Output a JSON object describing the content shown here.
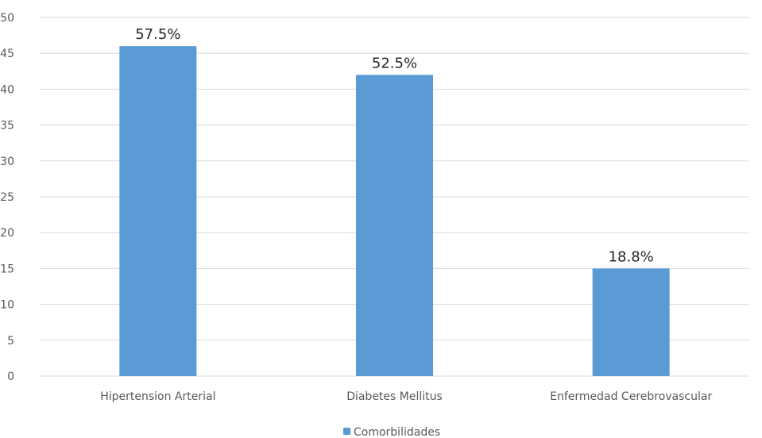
{
  "chart_data": {
    "type": "bar",
    "categories": [
      "Hipertension Arterial",
      "Diabetes Mellitus",
      "Enfermedad Cerebrovascular"
    ],
    "series": [
      {
        "name": "Comorbilidades",
        "values": [
          46,
          42,
          15
        ],
        "data_labels": [
          "57.5%",
          "52.5%",
          "18.8%"
        ],
        "color": "#5B9BD5"
      }
    ],
    "y_ticks": [
      0,
      5,
      10,
      15,
      20,
      25,
      30,
      35,
      40,
      45,
      50
    ],
    "ylim": [
      0,
      50
    ],
    "grid": true,
    "legend_position": "bottom",
    "gridline_color": "#D9D9D9"
  }
}
